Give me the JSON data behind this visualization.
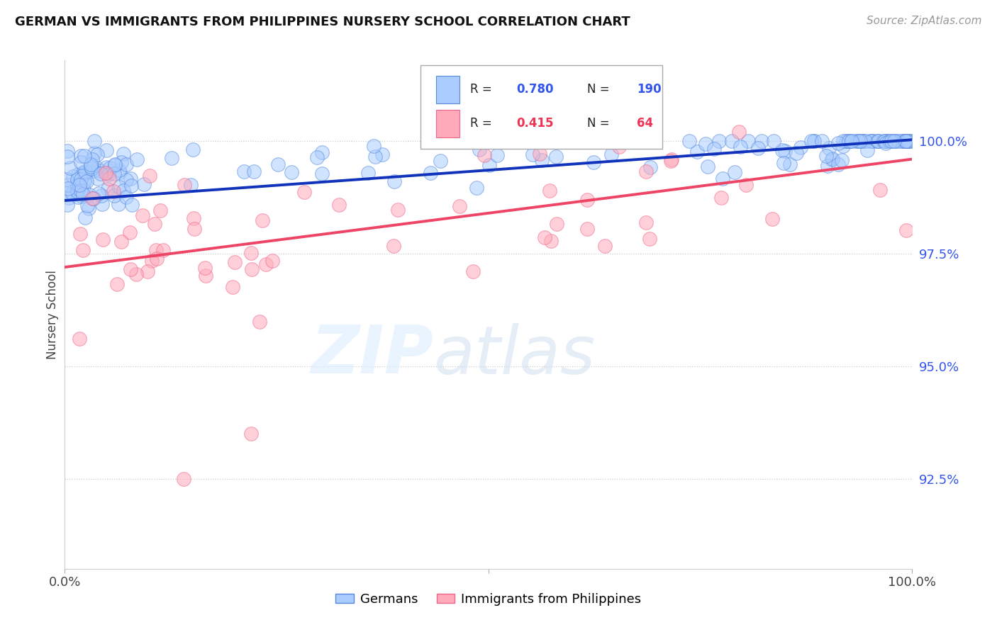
{
  "title": "GERMAN VS IMMIGRANTS FROM PHILIPPINES NURSERY SCHOOL CORRELATION CHART",
  "source": "Source: ZipAtlas.com",
  "ylabel": "Nursery School",
  "ytick_values": [
    92.5,
    95.0,
    97.5,
    100.0
  ],
  "ylim": [
    90.5,
    101.8
  ],
  "xlim": [
    0.0,
    100.0
  ],
  "legend_label_blue": "Germans",
  "legend_label_pink": "Immigrants from Philippines",
  "blue_face": "#AACCFF",
  "blue_edge": "#5588DD",
  "pink_face": "#FFAABB",
  "pink_edge": "#EE6688",
  "blue_line_color": "#1133BB",
  "pink_line_color": "#EE4466",
  "text_blue": "#3355EE",
  "text_pink": "#EE3355",
  "text_dark": "#222222",
  "background_color": "#FFFFFF",
  "grid_color": "#CCCCCC",
  "blue_reg_y0": 98.68,
  "blue_reg_y1": 100.03,
  "pink_reg_y0": 97.2,
  "pink_reg_y1": 99.6,
  "scatter_size": 200,
  "scatter_alpha": 0.55
}
